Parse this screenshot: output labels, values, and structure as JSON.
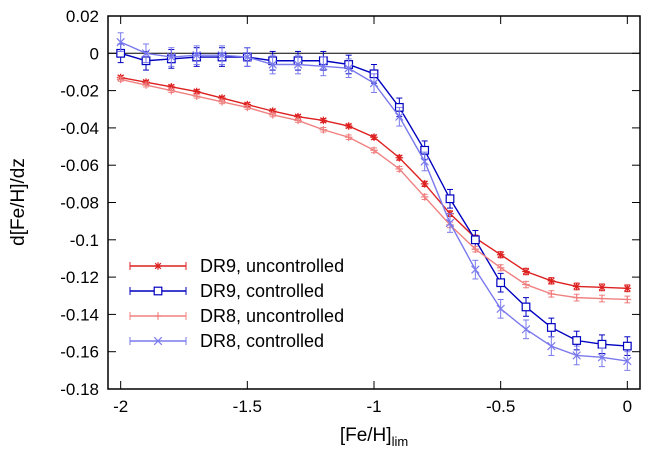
{
  "chart_data": {
    "type": "line",
    "xlabel": "[Fe/H]",
    "xlabel_sub": "lim",
    "ylabel": "d[Fe/H]/dz",
    "xlim": [
      -2.05,
      0.05
    ],
    "ylim": [
      -0.18,
      0.02
    ],
    "x_ticks": [
      -2,
      -1.5,
      -1,
      -0.5,
      0
    ],
    "x_tick_labels": [
      "-2",
      "-1.5",
      "-1",
      "-0.5",
      "0"
    ],
    "y_ticks": [
      0.02,
      0,
      -0.02,
      -0.04,
      -0.06,
      -0.08,
      -0.1,
      -0.12,
      -0.14,
      -0.16,
      -0.18
    ],
    "y_tick_labels": [
      "0.02",
      "0",
      "-0.02",
      "-0.04",
      "-0.06",
      "-0.08",
      "-0.1",
      "-0.12",
      "-0.14",
      "-0.16",
      "-0.18"
    ],
    "zero_line": true,
    "grid": false,
    "legend_position": "bottom-left",
    "x": [
      -2.0,
      -1.9,
      -1.8,
      -1.7,
      -1.6,
      -1.5,
      -1.4,
      -1.3,
      -1.2,
      -1.1,
      -1.0,
      -0.9,
      -0.8,
      -0.7,
      -0.6,
      -0.5,
      -0.4,
      -0.3,
      -0.2,
      -0.1,
      0.0
    ],
    "series": [
      {
        "name": "DR9, uncontrolled",
        "color": "#dd2020",
        "marker": "asterisk",
        "values": [
          -0.013,
          -0.0155,
          -0.018,
          -0.0205,
          -0.024,
          -0.0275,
          -0.031,
          -0.034,
          -0.036,
          -0.039,
          -0.045,
          -0.056,
          -0.07,
          -0.086,
          -0.099,
          -0.108,
          -0.117,
          -0.122,
          -0.125,
          -0.1255,
          -0.126
        ],
        "errors": [
          0.001,
          0.001,
          0.001,
          0.001,
          0.001,
          0.001,
          0.001,
          0.001,
          0.001,
          0.001,
          0.0012,
          0.0013,
          0.0014,
          0.0015,
          0.0015,
          0.0016,
          0.0017,
          0.0017,
          0.0018,
          0.0018,
          0.0018
        ]
      },
      {
        "name": "DR9, controlled",
        "color": "#0000c0",
        "marker": "square",
        "values": [
          0.0,
          -0.004,
          -0.003,
          -0.002,
          -0.002,
          -0.002,
          -0.004,
          -0.004,
          -0.004,
          -0.006,
          -0.011,
          -0.029,
          -0.052,
          -0.078,
          -0.1,
          -0.123,
          -0.136,
          -0.147,
          -0.154,
          -0.156,
          -0.157
        ],
        "errors": [
          0.005,
          0.005,
          0.005,
          0.005,
          0.005,
          0.005,
          0.005,
          0.005,
          0.005,
          0.005,
          0.005,
          0.005,
          0.005,
          0.005,
          0.005,
          0.005,
          0.005,
          0.005,
          0.005,
          0.005,
          0.005
        ]
      },
      {
        "name": "DR8, uncontrolled",
        "color": "#f08080",
        "marker": "plus",
        "values": [
          -0.014,
          -0.017,
          -0.02,
          -0.023,
          -0.026,
          -0.029,
          -0.033,
          -0.036,
          -0.041,
          -0.045,
          -0.052,
          -0.062,
          -0.077,
          -0.092,
          -0.105,
          -0.115,
          -0.124,
          -0.129,
          -0.131,
          -0.1315,
          -0.132
        ],
        "errors": [
          0.001,
          0.001,
          0.001,
          0.001,
          0.001,
          0.001,
          0.001,
          0.001,
          0.0012,
          0.0012,
          0.0013,
          0.0013,
          0.0014,
          0.0015,
          0.0015,
          0.0016,
          0.0017,
          0.0017,
          0.0018,
          0.0018,
          0.0018
        ]
      },
      {
        "name": "DR8, controlled",
        "color": "#7a7aee",
        "marker": "cross",
        "values": [
          0.006,
          0.0,
          -0.002,
          -0.001,
          -0.001,
          -0.002,
          -0.006,
          -0.006,
          -0.007,
          -0.008,
          -0.016,
          -0.034,
          -0.058,
          -0.091,
          -0.116,
          -0.137,
          -0.148,
          -0.157,
          -0.162,
          -0.163,
          -0.165
        ],
        "errors": [
          0.005,
          0.005,
          0.005,
          0.005,
          0.005,
          0.005,
          0.005,
          0.005,
          0.005,
          0.005,
          0.005,
          0.005,
          0.005,
          0.005,
          0.005,
          0.005,
          0.005,
          0.005,
          0.005,
          0.005,
          0.005
        ]
      }
    ]
  }
}
